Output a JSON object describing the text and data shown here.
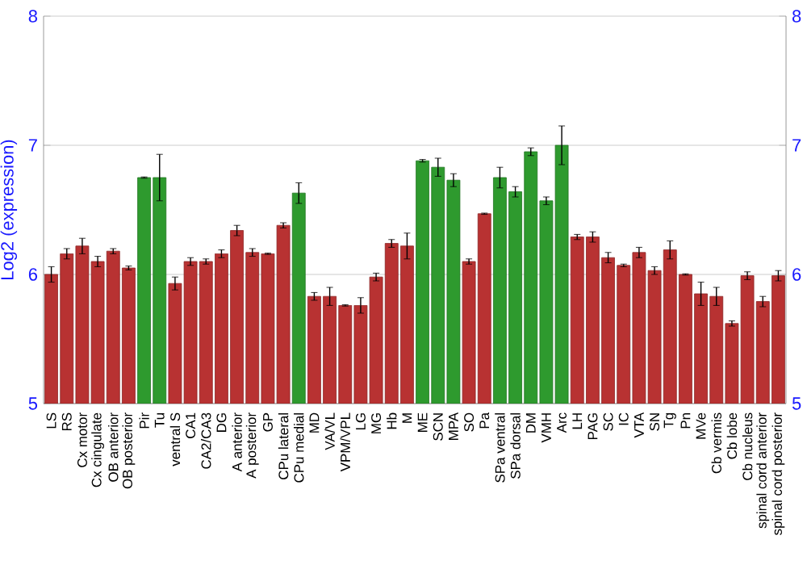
{
  "chart_data": {
    "type": "bar",
    "ylabel": "Log2 (expression)",
    "categories": [
      "LS",
      "RS",
      "Cx motor",
      "Cx cingulate",
      "OB anterior",
      "OB posterior",
      "Pir",
      "Tu",
      "ventral S",
      "CA1",
      "CA2/CA3",
      "DG",
      "A anterior",
      "A posterior",
      "GP",
      "CPu lateral",
      "CPu medial",
      "MD",
      "VA/VL",
      "VPM/VPL",
      "LG",
      "MG",
      "Hb",
      "M",
      "ME",
      "SCN",
      "MPA",
      "SO",
      "Pa",
      "SPa ventral",
      "SPa dorsal",
      "DM",
      "VMH",
      "Arc",
      "LH",
      "PAG",
      "SC",
      "IC",
      "VTA",
      "SN",
      "Tg",
      "Pn",
      "MVe",
      "Cb vermis",
      "Cb lobe",
      "Cb nucleus",
      "spinal cord anterior",
      "spinal cord posterior"
    ],
    "values": [
      6.0,
      6.16,
      6.22,
      6.1,
      6.18,
      6.05,
      6.75,
      6.75,
      5.93,
      6.1,
      6.1,
      6.16,
      6.34,
      6.17,
      6.16,
      6.38,
      6.63,
      5.83,
      5.83,
      5.76,
      5.76,
      5.98,
      6.24,
      6.22,
      6.88,
      6.83,
      6.73,
      6.1,
      6.47,
      6.75,
      6.64,
      6.95,
      6.57,
      7.0,
      6.29,
      6.29,
      6.13,
      6.07,
      6.17,
      6.03,
      6.19,
      6.0,
      5.85,
      5.83,
      5.62,
      5.99,
      5.79,
      5.99
    ],
    "errors": [
      0.06,
      0.04,
      0.06,
      0.04,
      0.02,
      0.015,
      0.005,
      0.18,
      0.05,
      0.03,
      0.02,
      0.03,
      0.04,
      0.03,
      0.005,
      0.02,
      0.08,
      0.03,
      0.07,
      0.005,
      0.06,
      0.03,
      0.03,
      0.1,
      0.01,
      0.07,
      0.05,
      0.02,
      0.005,
      0.08,
      0.04,
      0.03,
      0.03,
      0.15,
      0.02,
      0.04,
      0.04,
      0.01,
      0.04,
      0.03,
      0.07,
      0.005,
      0.09,
      0.07,
      0.02,
      0.03,
      0.04,
      0.04
    ],
    "colors": [
      "#b83232",
      "#b83232",
      "#b83232",
      "#b83232",
      "#b83232",
      "#b83232",
      "#2e9a2e",
      "#2e9a2e",
      "#b83232",
      "#b83232",
      "#b83232",
      "#b83232",
      "#b83232",
      "#b83232",
      "#b83232",
      "#b83232",
      "#2e9a2e",
      "#b83232",
      "#b83232",
      "#b83232",
      "#b83232",
      "#b83232",
      "#b83232",
      "#b83232",
      "#2e9a2e",
      "#2e9a2e",
      "#2e9a2e",
      "#b83232",
      "#b83232",
      "#2e9a2e",
      "#2e9a2e",
      "#2e9a2e",
      "#2e9a2e",
      "#2e9a2e",
      "#b83232",
      "#b83232",
      "#b83232",
      "#b83232",
      "#b83232",
      "#b83232",
      "#b83232",
      "#b83232",
      "#b83232",
      "#b83232",
      "#b83232",
      "#b83232",
      "#b83232",
      "#b83232"
    ],
    "ylim": [
      5,
      8
    ],
    "yticks": [
      5,
      6,
      7,
      8
    ],
    "y2lim": [
      5,
      8
    ],
    "y2ticks": [
      5,
      6,
      7,
      8
    ],
    "grid": "y"
  }
}
